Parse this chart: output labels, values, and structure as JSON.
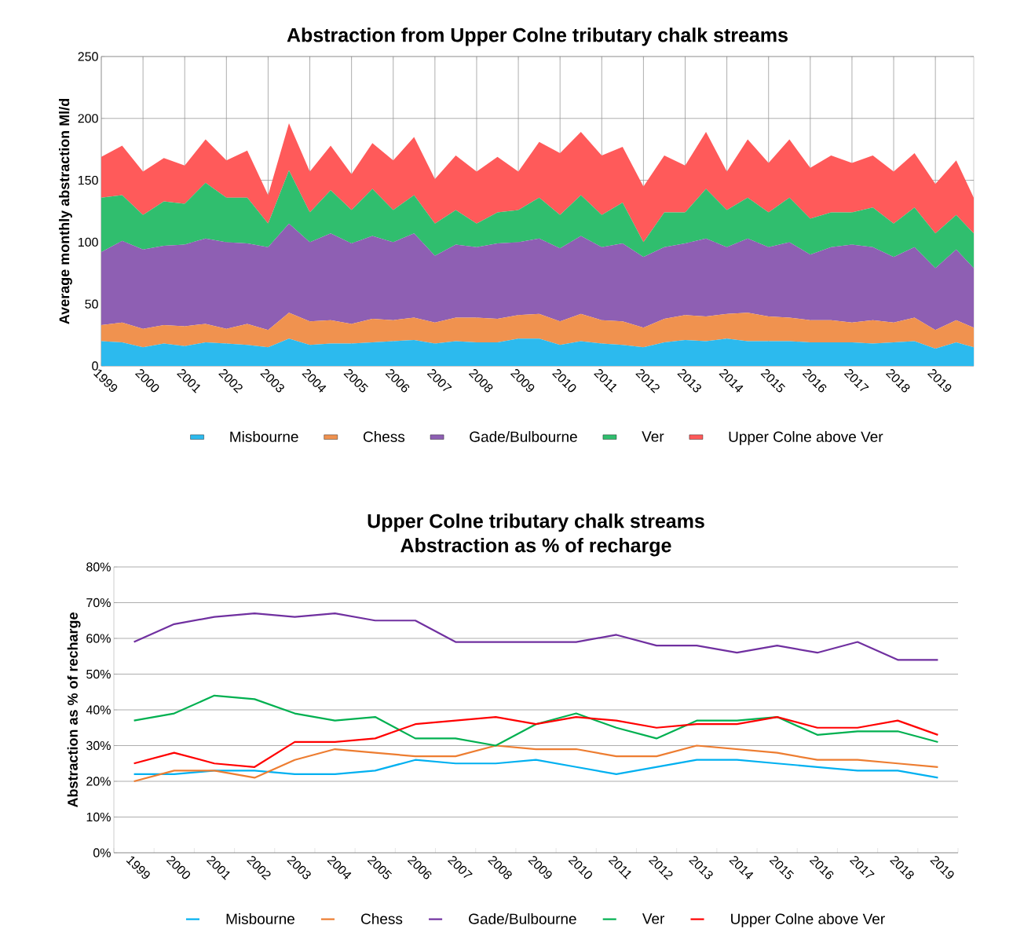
{
  "chart_data": [
    {
      "type": "area",
      "title": "Abstraction from Upper Colne tributary chalk streams",
      "ylabel": "Average monthly abstraction Ml/d",
      "stacked": true,
      "grid": true,
      "legend": "bottom",
      "x": [
        1999,
        1999.5,
        2000,
        2000.5,
        2001,
        2001.5,
        2002,
        2002.5,
        2003,
        2003.5,
        2004,
        2004.5,
        2005,
        2005.5,
        2006,
        2006.5,
        2007,
        2007.5,
        2008,
        2008.5,
        2009,
        2009.5,
        2010,
        2010.5,
        2011,
        2011.5,
        2012,
        2012.5,
        2013,
        2013.5,
        2014,
        2014.5,
        2015,
        2015.5,
        2016,
        2016.5,
        2017,
        2017.5,
        2018,
        2018.5,
        2019,
        2019.5,
        2019.92
      ],
      "xlim": [
        1999,
        2019.92
      ],
      "xticks": [
        1999,
        2000,
        2001,
        2002,
        2003,
        2004,
        2005,
        2006,
        2007,
        2008,
        2009,
        2010,
        2011,
        2012,
        2013,
        2014,
        2015,
        2016,
        2017,
        2018,
        2019
      ],
      "ylim": [
        0,
        250
      ],
      "yticks": [
        0,
        50,
        100,
        150,
        200,
        250
      ],
      "series": [
        {
          "name": "Misbourne",
          "color": "#2cbaee",
          "values": [
            20,
            19,
            15,
            18,
            16,
            19,
            18,
            17,
            15,
            22,
            17,
            18,
            18,
            19,
            20,
            21,
            18,
            20,
            19,
            19,
            22,
            22,
            17,
            20,
            18,
            17,
            15,
            19,
            21,
            20,
            22,
            20,
            20,
            20,
            19,
            19,
            19,
            18,
            19,
            20,
            14,
            19,
            15
          ]
        },
        {
          "name": "Chess",
          "color": "#f0924f",
          "values": [
            13,
            16,
            15,
            15,
            16,
            15,
            12,
            17,
            14,
            21,
            19,
            19,
            16,
            19,
            17,
            18,
            17,
            19,
            20,
            19,
            19,
            20,
            19,
            22,
            19,
            19,
            16,
            19,
            20,
            20,
            20,
            23,
            20,
            19,
            18,
            18,
            16,
            19,
            16,
            19,
            15,
            18,
            16
          ]
        },
        {
          "name": "Gade/Bulbourne",
          "color": "#8e5fb3",
          "values": [
            59,
            66,
            64,
            64,
            66,
            69,
            70,
            65,
            67,
            72,
            64,
            70,
            65,
            67,
            63,
            68,
            54,
            59,
            57,
            61,
            59,
            61,
            59,
            63,
            59,
            63,
            57,
            58,
            58,
            63,
            54,
            60,
            56,
            61,
            53,
            59,
            63,
            59,
            53,
            57,
            50,
            57,
            48
          ]
        },
        {
          "name": "Ver",
          "color": "#30be6e",
          "values": [
            44,
            37,
            28,
            36,
            33,
            45,
            36,
            37,
            19,
            43,
            24,
            35,
            27,
            38,
            26,
            31,
            26,
            28,
            19,
            25,
            26,
            33,
            27,
            33,
            26,
            33,
            12,
            28,
            25,
            40,
            30,
            33,
            28,
            36,
            29,
            28,
            26,
            32,
            27,
            32,
            28,
            28,
            28
          ]
        },
        {
          "name": "Upper Colne above Ver",
          "color": "#ff5a5a",
          "values": [
            33,
            40,
            35,
            35,
            31,
            35,
            30,
            38,
            23,
            38,
            33,
            36,
            29,
            37,
            40,
            47,
            36,
            44,
            42,
            45,
            31,
            45,
            50,
            51,
            48,
            45,
            45,
            46,
            38,
            46,
            31,
            47,
            40,
            47,
            41,
            46,
            40,
            42,
            42,
            44,
            40,
            44,
            29
          ]
        }
      ]
    },
    {
      "type": "line",
      "title": "Upper Colne tributary chalk streams",
      "subtitle": "Abstraction as % of recharge",
      "ylabel": "Abstraction as % of recharge",
      "grid": "y",
      "legend": "bottom",
      "categories": [
        "1999",
        "2000",
        "2001",
        "2002",
        "2003",
        "2004",
        "2005",
        "2006",
        "2007",
        "2008",
        "2009",
        "2010",
        "2011",
        "2012",
        "2013",
        "2014",
        "2015",
        "2016",
        "2017",
        "2018",
        "2019"
      ],
      "ylim": [
        0,
        80
      ],
      "yticks": [
        {
          "value": 0,
          "label": "0%"
        },
        {
          "value": 10,
          "label": "10%"
        },
        {
          "value": 20,
          "label": "20%"
        },
        {
          "value": 30,
          "label": "30%"
        },
        {
          "value": 40,
          "label": "40%"
        },
        {
          "value": 50,
          "label": "50%"
        },
        {
          "value": 60,
          "label": "60%"
        },
        {
          "value": 70,
          "label": "70%"
        },
        {
          "value": 80,
          "label": "80%"
        }
      ],
      "series": [
        {
          "name": "Misbourne",
          "color": "#00b0f0",
          "values": [
            22,
            22,
            23,
            23,
            22,
            22,
            23,
            26,
            25,
            25,
            26,
            24,
            22,
            24,
            26,
            26,
            25,
            24,
            23,
            23,
            21
          ]
        },
        {
          "name": "Chess",
          "color": "#ed7d31",
          "values": [
            20,
            23,
            23,
            21,
            26,
            29,
            28,
            27,
            27,
            30,
            29,
            29,
            27,
            27,
            30,
            29,
            28,
            26,
            26,
            25,
            24
          ]
        },
        {
          "name": "Gade/Bulbourne",
          "color": "#7030a0",
          "values": [
            59,
            64,
            66,
            67,
            66,
            67,
            65,
            65,
            59,
            59,
            59,
            59,
            61,
            58,
            58,
            56,
            58,
            56,
            59,
            54,
            54
          ]
        },
        {
          "name": "Ver",
          "color": "#00b050",
          "values": [
            37,
            39,
            44,
            43,
            39,
            37,
            38,
            32,
            32,
            30,
            36,
            39,
            35,
            32,
            37,
            37,
            38,
            33,
            34,
            34,
            31
          ]
        },
        {
          "name": "Upper Colne above Ver",
          "color": "#ff0000",
          "values": [
            25,
            28,
            25,
            24,
            31,
            31,
            32,
            36,
            37,
            38,
            36,
            38,
            37,
            35,
            36,
            36,
            38,
            35,
            35,
            37,
            33
          ]
        }
      ]
    }
  ]
}
